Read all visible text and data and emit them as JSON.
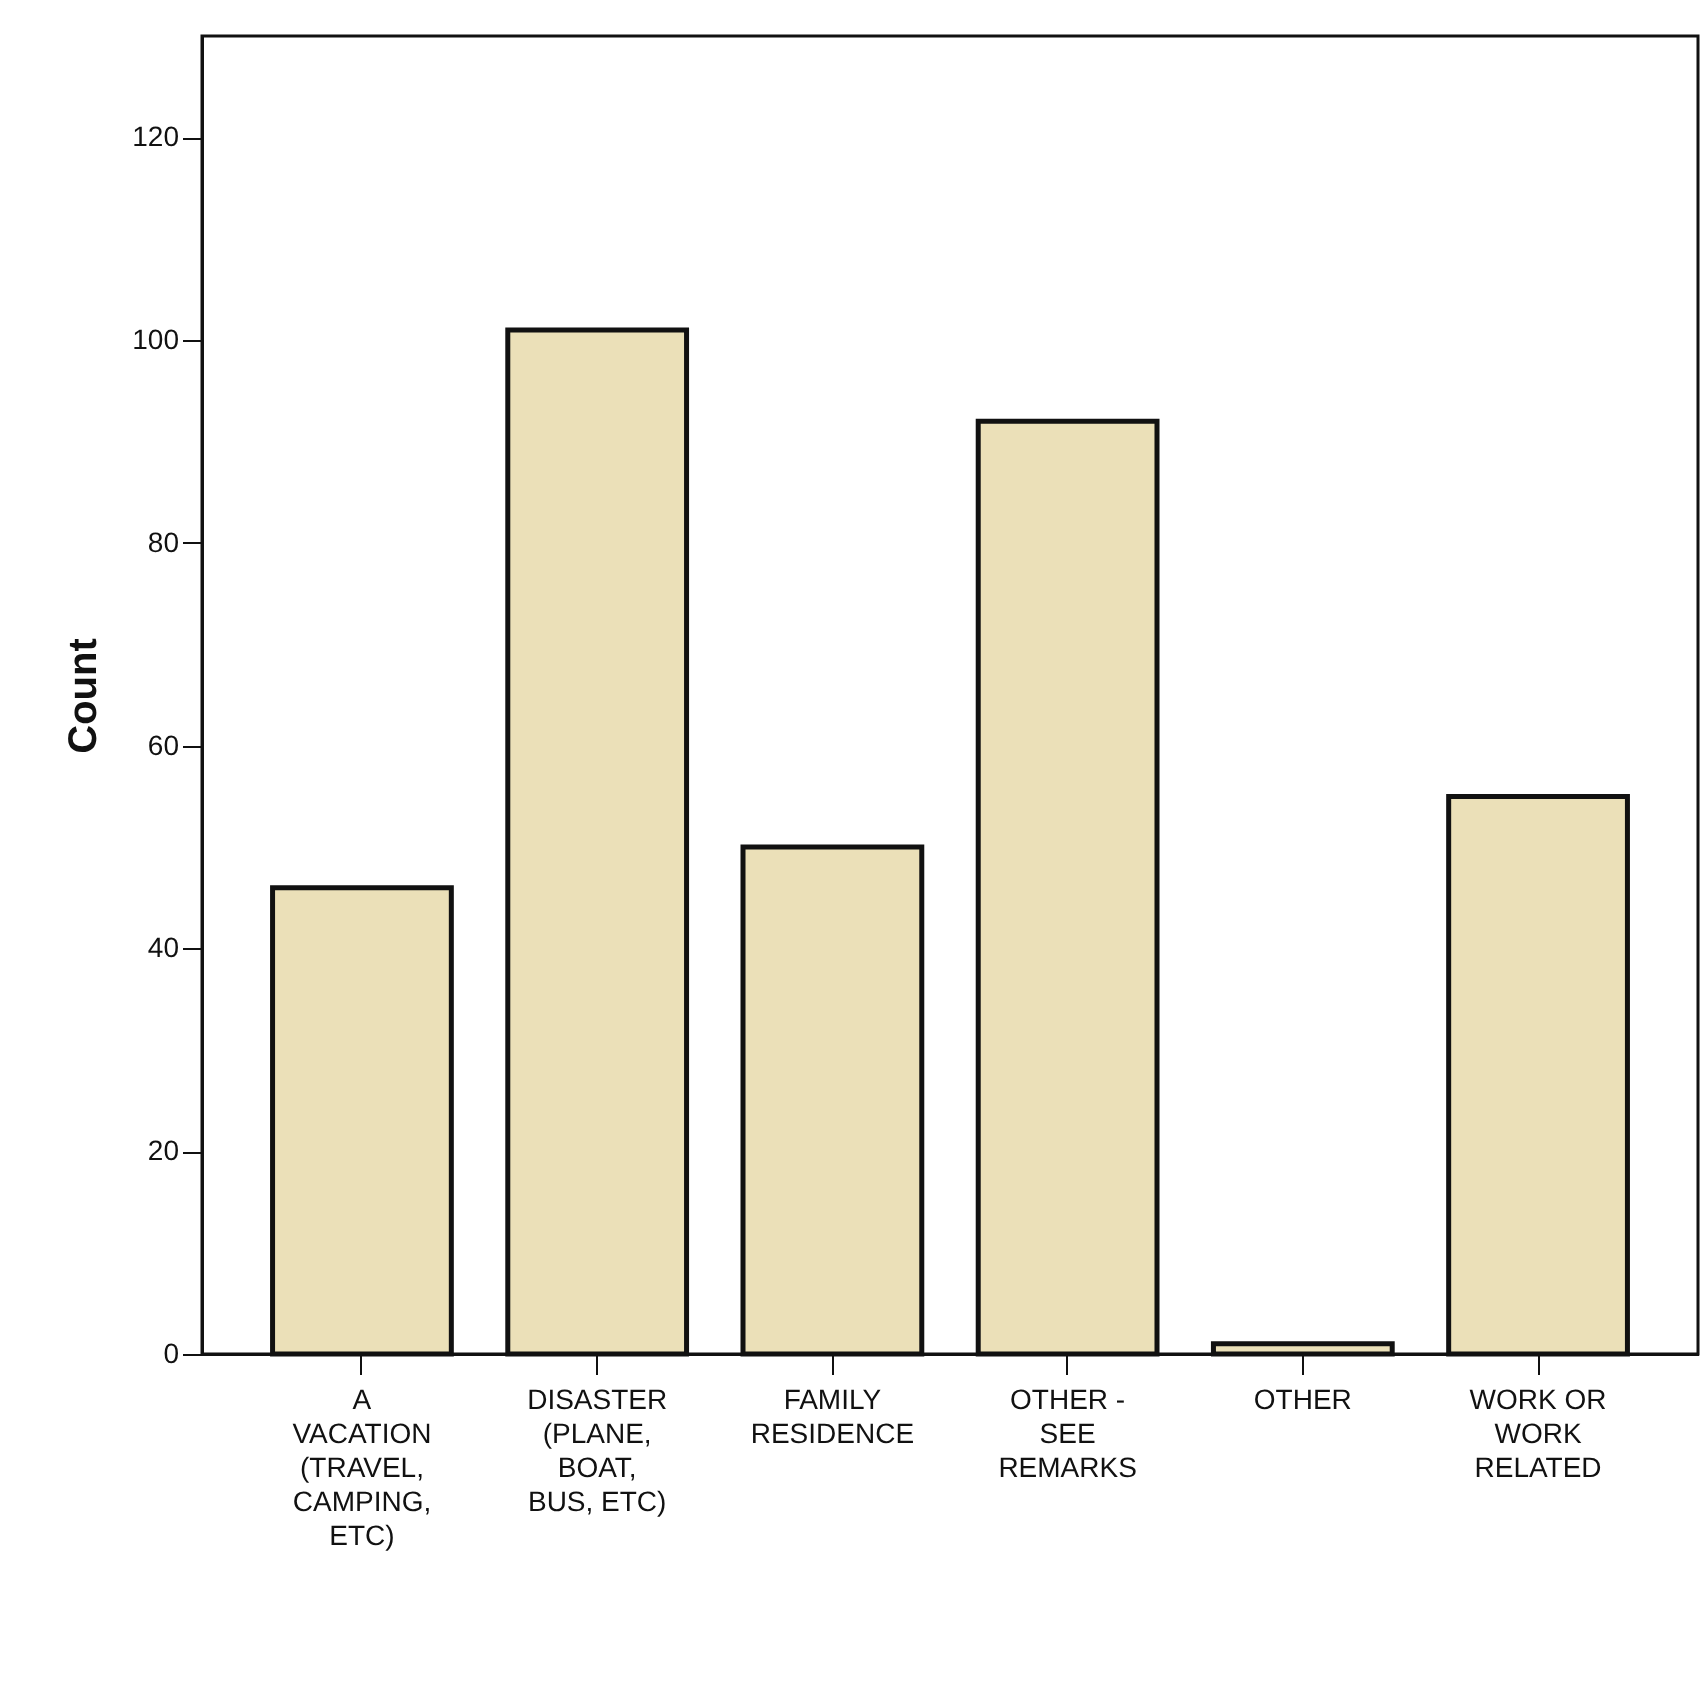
{
  "chart_data": {
    "type": "bar",
    "ylabel": "Count",
    "categories": [
      "A VACATION (TRAVEL, CAMPING, ETC)",
      "DISASTER (PLANE, BOAT, BUS, ETC)",
      "FAMILY RESIDENCE",
      "OTHER - SEE REMARKS",
      "OTHER",
      "WORK OR WORK RELATED"
    ],
    "values": [
      46,
      101,
      50,
      92,
      1,
      55
    ],
    "color": "#ebe0b8",
    "ylim": [
      0,
      130
    ],
    "yticks": [
      0,
      20,
      40,
      60,
      80,
      100,
      120
    ],
    "grid": false
  }
}
